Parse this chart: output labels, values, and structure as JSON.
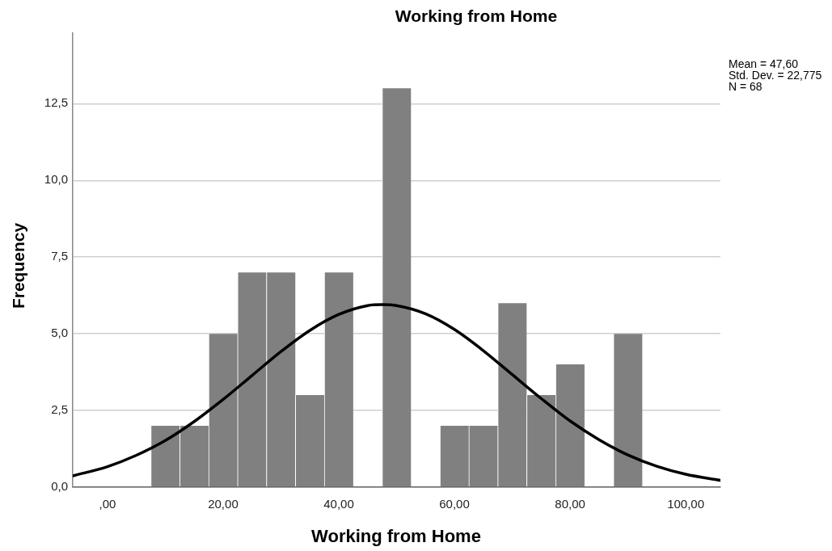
{
  "chart_data": {
    "type": "histogram",
    "title": "Working from Home",
    "xlabel": "Working from Home",
    "ylabel": "Frequency",
    "annotations": [
      "Mean = 47,60",
      "Std. Dev. = 22,775",
      "N = 68"
    ],
    "bins": [
      7.5,
      12.5,
      17.5,
      22.5,
      27.5,
      32.5,
      37.5,
      42.5,
      47.5,
      52.5,
      57.5,
      62.5,
      67.5,
      72.5,
      77.5,
      82.5,
      87.5,
      92.5
    ],
    "series": [
      {
        "type": "histogram",
        "color": "#808080",
        "values": [
          2,
          2,
          5,
          7,
          7,
          3,
          7,
          0,
          13,
          0,
          2,
          2,
          6,
          3,
          4,
          0,
          5
        ]
      },
      {
        "type": "line",
        "color": "#000000",
        "x": [
          -6,
          0,
          5,
          10,
          15,
          20,
          25,
          30,
          35,
          40,
          45,
          47.5,
          50,
          55,
          60,
          65,
          70,
          75,
          80,
          85,
          90,
          95,
          100,
          106
        ],
        "values": [
          0.37,
          0.67,
          1.04,
          1.52,
          2.14,
          2.86,
          3.64,
          4.42,
          5.11,
          5.63,
          5.92,
          5.95,
          5.92,
          5.65,
          5.14,
          4.45,
          3.67,
          2.89,
          2.16,
          1.55,
          1.05,
          0.68,
          0.42,
          0.22
        ]
      }
    ],
    "xlim": [
      -6,
      106
    ],
    "xticks": [
      {
        "value": 0,
        "label": ",00"
      },
      {
        "value": 20,
        "label": "20,00"
      },
      {
        "value": 40,
        "label": "40,00"
      },
      {
        "value": 60,
        "label": "60,00"
      },
      {
        "value": 80,
        "label": "80,00"
      },
      {
        "value": 100,
        "label": "100,00"
      }
    ],
    "ylim": [
      0,
      14.8
    ],
    "yticks": [
      {
        "value": 0,
        "label": "0,0"
      },
      {
        "value": 2.5,
        "label": "2,5"
      },
      {
        "value": 5,
        "label": "5,0"
      },
      {
        "value": 7.5,
        "label": "7,5"
      },
      {
        "value": 10,
        "label": "10,0"
      },
      {
        "value": 12.5,
        "label": "12,5"
      }
    ],
    "grid": "y",
    "marker": "none",
    "line_style": "solid"
  }
}
